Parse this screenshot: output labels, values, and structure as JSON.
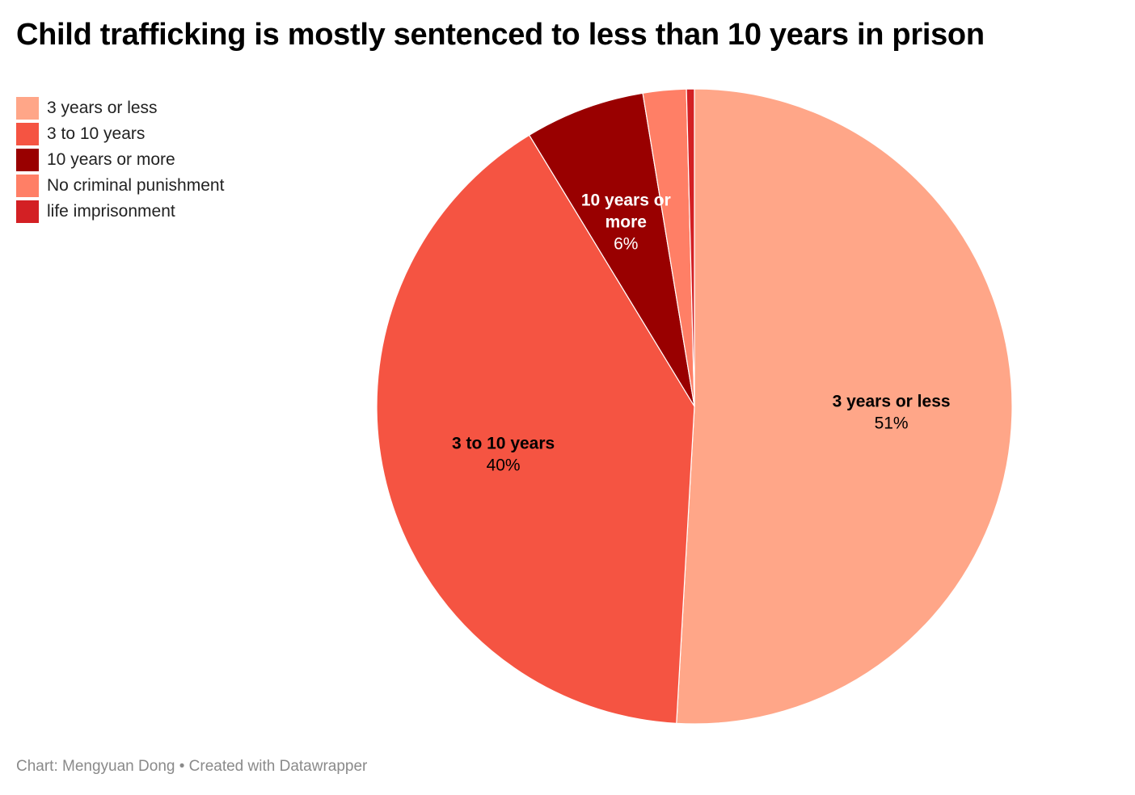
{
  "title": "Child trafficking is mostly sentenced to less than 10 years in prison",
  "footer": "Chart: Mengyuan Dong • Created with Datawrapper",
  "chart_data": {
    "type": "pie",
    "start_angle_deg": 0,
    "direction": "clockwise",
    "legend_position": "top-left",
    "slices": [
      {
        "label": "3 years or less",
        "value": 50.9,
        "display": "51%",
        "color": "#ffa688",
        "label_color": "#000000",
        "show_label": true,
        "label_lines": [
          "3 years or less"
        ]
      },
      {
        "label": "3 to 10 years",
        "value": 40.4,
        "display": "40%",
        "color": "#f55442",
        "label_color": "#000000",
        "show_label": true,
        "label_lines": [
          "3 to 10 years"
        ]
      },
      {
        "label": "10 years or more",
        "value": 6.1,
        "display": "6%",
        "color": "#990000",
        "label_color": "#ffffff",
        "show_label": true,
        "label_lines": [
          "10 years or",
          "more"
        ]
      },
      {
        "label": "No criminal punishment",
        "value": 2.2,
        "display": "2%",
        "color": "#ff7f66",
        "label_color": "#000000",
        "show_label": false,
        "label_lines": []
      },
      {
        "label": "life imprisonment",
        "value": 0.4,
        "display": "0%",
        "color": "#d32024",
        "label_color": "#ffffff",
        "show_label": false,
        "label_lines": []
      }
    ]
  }
}
